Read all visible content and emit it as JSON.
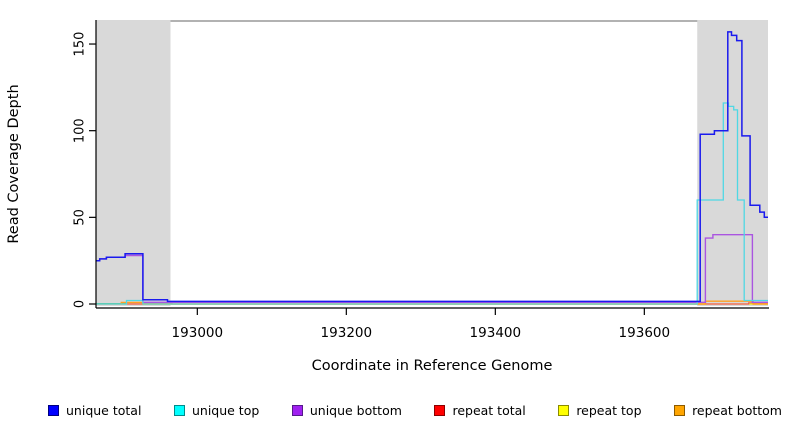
{
  "chart_data": {
    "type": "line",
    "title": "",
    "xlabel": "Coordinate in Reference Genome",
    "ylabel": "Read Coverage Depth",
    "xlim": [
      192864,
      193766
    ],
    "ylim": [
      0,
      163
    ],
    "x_ticks": [
      193000,
      193200,
      193400,
      193600
    ],
    "y_ticks": [
      0,
      50,
      100,
      150
    ],
    "grid": false,
    "legend_position": "bottom",
    "axis_color": "#000000",
    "top_border_color": "#999999",
    "shaded_regions": [
      {
        "name": "left-gray-region",
        "x0": 192864,
        "x1": 192964,
        "color": "#d9d9d9"
      },
      {
        "name": "right-gray-region",
        "x0": 193671,
        "x1": 193766,
        "color": "#d9d9d9"
      }
    ],
    "series": [
      {
        "name": "repeat top",
        "color": "#f0f000",
        "width": 1.2,
        "points": [
          [
            192864,
            0
          ],
          [
            193766,
            0
          ]
        ]
      },
      {
        "name": "repeat total",
        "color": "#f25c5c",
        "width": 1.2,
        "points": [
          [
            192864,
            0
          ],
          [
            192927,
            0
          ],
          [
            192927,
            0.7
          ],
          [
            192966,
            0.7
          ],
          [
            192966,
            0
          ],
          [
            193740,
            0
          ],
          [
            193740,
            0.7
          ],
          [
            193766,
            0.7
          ]
        ]
      },
      {
        "name": "green-baseline-segment",
        "color": "#55bb66",
        "width": 1.2,
        "points": [
          [
            192864,
            0.2
          ],
          [
            192905,
            0.2
          ]
        ]
      },
      {
        "name": "repeat bottom",
        "color": "#ffa020",
        "width": 1.4,
        "points": [
          [
            192898,
            0
          ],
          [
            192898,
            0.9
          ],
          [
            192927,
            0.9
          ],
          [
            192927,
            0
          ],
          [
            193682,
            0
          ],
          [
            193682,
            1.6
          ],
          [
            193746,
            1.6
          ],
          [
            193746,
            0
          ],
          [
            193766,
            0
          ]
        ]
      },
      {
        "name": "unique bottom",
        "color": "#aa55e0",
        "width": 1.4,
        "points": [
          [
            192864,
            25
          ],
          [
            192869,
            25
          ],
          [
            192869,
            26
          ],
          [
            192878,
            26
          ],
          [
            192878,
            27
          ],
          [
            192903,
            27
          ],
          [
            192903,
            28
          ],
          [
            192927,
            28
          ],
          [
            192927,
            1
          ],
          [
            193682,
            1
          ],
          [
            193682,
            38
          ],
          [
            193692,
            38
          ],
          [
            193692,
            40
          ],
          [
            193745,
            40
          ],
          [
            193745,
            1
          ],
          [
            193766,
            1
          ]
        ]
      },
      {
        "name": "unique top",
        "color": "#4fd8e4",
        "width": 1.3,
        "points": [
          [
            192864,
            0
          ],
          [
            192905,
            0
          ],
          [
            192905,
            2
          ],
          [
            192927,
            2
          ],
          [
            192927,
            0
          ],
          [
            193671,
            0
          ],
          [
            193671,
            60
          ],
          [
            193706,
            60
          ],
          [
            193706,
            116
          ],
          [
            193713,
            116
          ],
          [
            193713,
            114
          ],
          [
            193720,
            114
          ],
          [
            193720,
            112
          ],
          [
            193725,
            112
          ],
          [
            193725,
            60
          ],
          [
            193734,
            60
          ],
          [
            193734,
            2
          ],
          [
            193766,
            2
          ]
        ]
      },
      {
        "name": "unique total",
        "color": "#1a1aee",
        "width": 1.5,
        "points": [
          [
            192864,
            25
          ],
          [
            192869,
            25
          ],
          [
            192869,
            26
          ],
          [
            192878,
            26
          ],
          [
            192878,
            27
          ],
          [
            192903,
            27
          ],
          [
            192903,
            29
          ],
          [
            192927,
            29
          ],
          [
            192927,
            2.5
          ],
          [
            192960,
            2.5
          ],
          [
            192960,
            1.5
          ],
          [
            193675,
            1.5
          ],
          [
            193675,
            98
          ],
          [
            193694,
            98
          ],
          [
            193694,
            100
          ],
          [
            193712,
            100
          ],
          [
            193712,
            157
          ],
          [
            193717,
            157
          ],
          [
            193717,
            155
          ],
          [
            193724,
            155
          ],
          [
            193724,
            152
          ],
          [
            193731,
            152
          ],
          [
            193731,
            97
          ],
          [
            193742,
            97
          ],
          [
            193742,
            57
          ],
          [
            193755,
            57
          ],
          [
            193755,
            53
          ],
          [
            193761,
            53
          ],
          [
            193761,
            50
          ],
          [
            193766,
            50
          ]
        ]
      }
    ]
  },
  "legend": {
    "items": [
      {
        "label": "unique total",
        "fill": "#0000ff",
        "border": "#000080"
      },
      {
        "label": "unique top",
        "fill": "#00ffff",
        "border": "#008b8b"
      },
      {
        "label": "unique bottom",
        "fill": "#a020f0",
        "border": "#551a8b"
      },
      {
        "label": "repeat total",
        "fill": "#ff0000",
        "border": "#8b0000"
      },
      {
        "label": "repeat top",
        "fill": "#ffff00",
        "border": "#8b8b00"
      },
      {
        "label": "repeat bottom",
        "fill": "#ffa500",
        "border": "#8b5a00"
      }
    ]
  }
}
